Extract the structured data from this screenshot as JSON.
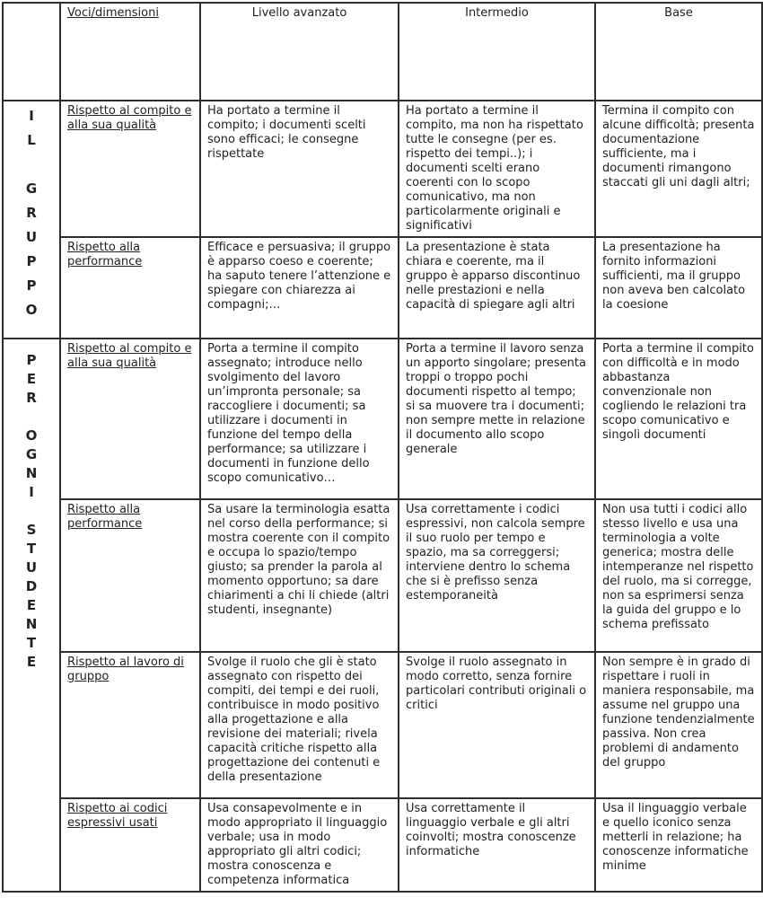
{
  "header": {
    "corner": "",
    "voci": "Voci/dimensioni",
    "levels": [
      "Livello avanzato",
      "Intermedio",
      "Base"
    ]
  },
  "sections": [
    {
      "label": "I\nL\n\nG\nR\nU\nP\nP\nO",
      "label_text": "IL GRUPPO",
      "rows": [
        {
          "dimension": "Rispetto al compito e alla sua qualità",
          "avanzato": "Ha  portato a termine il compito; i documenti scelti sono efficaci; le consegne rispettate",
          "intermedio": "Ha portato a termine il compito, ma non ha rispettato tutte le consegne (per es. rispetto dei tempi..); i documenti scelti erano coerenti con lo scopo comunicativo, ma non particolarmente originali e significativi",
          "base": "Termina il compito con alcune difficoltà; presenta documentazione sufficiente, ma i documenti rimangono staccati gli uni dagli altri;"
        },
        {
          "dimension": "Rispetto alla performance",
          "avanzato": "Efficace e persuasiva; il gruppo è apparso coeso e coerente; ha saputo tenere l’attenzione e spiegare con chiarezza ai compagni;…",
          "intermedio": "La presentazione è stata chiara e coerente, ma il gruppo è apparso discontinuo nelle prestazioni e nella capacità di spiegare agli altri",
          "base": "La presentazione ha fornito informazioni sufficienti, ma il gruppo non aveva ben calcolato la coesione"
        }
      ]
    },
    {
      "label": "P\nE\nR\n\nO\nG\nN\nI\n\nS\nT\nU\nD\nE\nN\nT\nE",
      "label_text": "PER OGNI STUDENTE",
      "rows": [
        {
          "dimension": "Rispetto al compito e alla sua qualità",
          "avanzato": "Porta a termine il compito assegnato; introduce nello svolgimento del lavoro un’impronta personale; sa raccogliere i documenti; sa utilizzare i  documenti in funzione del tempo della performance; sa utilizzare i documenti in funzione dello scopo comunicativo…",
          "intermedio": "Porta a termine il lavoro senza un apporto singolare; presenta troppi o troppo pochi documenti rispetto al tempo; si sa muovere tra i documenti; non sempre mette in relazione il documento allo scopo generale",
          "base": "Porta a termine il compito con difficoltà e in modo abbastanza convenzionale non cogliendo le relazioni tra scopo comunicativo e singoli documenti"
        },
        {
          "dimension": "Rispetto alla performance",
          "avanzato": "Sa usare la terminologia esatta nel corso della performance; si mostra coerente con il compito e occupa lo spazio/tempo giusto; sa prender la parola al momento opportuno; sa dare chiarimenti a chi li chiede (altri studenti, insegnante)",
          "intermedio": "Usa correttamente i codici espressivi, non calcola sempre il suo ruolo per tempo e spazio, ma sa correggersi; interviene dentro lo schema che si è prefisso senza estemporaneità",
          "base": "Non usa tutti i codici allo stesso livello e usa una terminologia a volte generica; mostra delle intemperanze nel rispetto del ruolo, ma si corregge, non sa esprimersi senza la guida del gruppo e lo schema prefissato"
        },
        {
          "dimension": "Rispetto al lavoro di gruppo",
          "avanzato": "Svolge il ruolo che gli è stato assegnato con rispetto dei compiti, dei tempi e dei ruoli, contribuisce in modo positivo alla progettazione e alla revisione dei materiali; rivela capacità critiche rispetto alla progettazione dei contenuti e della presentazione",
          "intermedio": "Svolge il ruolo assegnato in modo corretto, senza fornire particolari contributi originali o critici",
          "base": "Non sempre è in grado di rispettare i ruoli in maniera responsabile, ma assume nel gruppo una funzione tendenzialmente passiva. Non crea problemi di andamento del gruppo"
        },
        {
          "dimension": "Rispetto ai codici espressivi usati",
          "avanzato": "Usa consapevolmente e in modo appropriato il linguaggio verbale; usa in modo appropriato gli altri codici; mostra conoscenza e competenza informatica",
          "intermedio": "Usa correttamente il linguaggio verbale e gli altri coinvolti; mostra conoscenze informatiche",
          "base": "Usa il linguaggio verbale e quello iconico senza metterli in relazione; ha conoscenze informatiche minime"
        }
      ]
    }
  ]
}
